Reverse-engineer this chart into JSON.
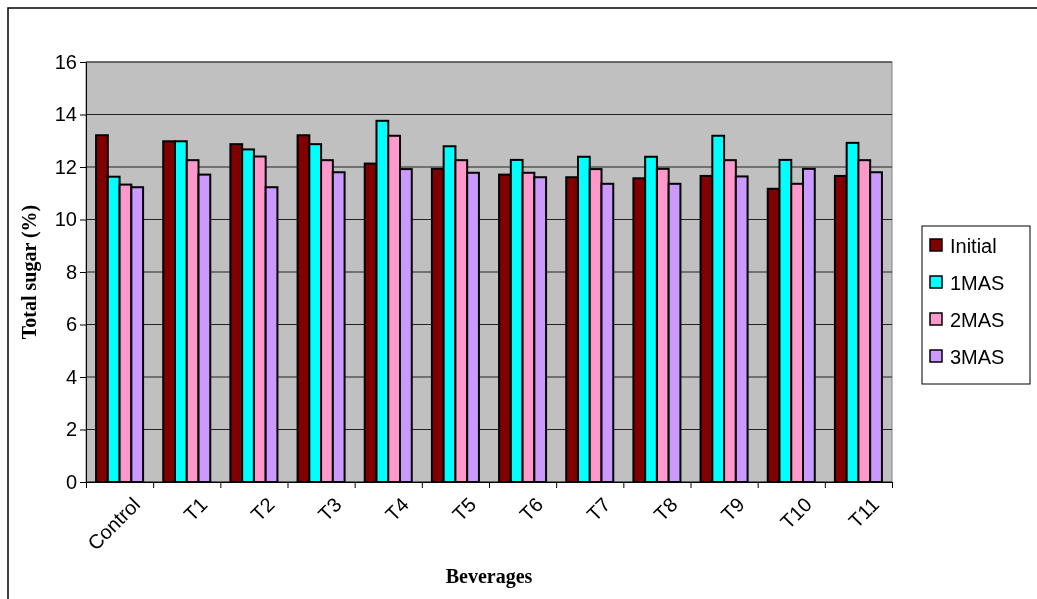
{
  "chart_data": {
    "type": "bar",
    "xlabel": "Beverages",
    "ylabel": "Total sugar (%)",
    "categories": [
      "Control",
      "T1",
      "T2",
      "T3",
      "T4",
      "T5",
      "T6",
      "T7",
      "T8",
      "T9",
      "T10",
      "T11"
    ],
    "series": [
      {
        "name": "Initial",
        "color": "#800000",
        "values": [
          13.21,
          12.98,
          12.87,
          13.21,
          12.13,
          11.93,
          11.71,
          11.61,
          11.57,
          11.66,
          11.17,
          11.66
        ]
      },
      {
        "name": "1MAS",
        "color": "#00ffff",
        "values": [
          11.63,
          12.98,
          12.67,
          12.87,
          13.76,
          12.79,
          12.27,
          12.39,
          12.39,
          13.19,
          12.27,
          12.92
        ]
      },
      {
        "name": "2MAS",
        "color": "#ff99cc",
        "values": [
          11.33,
          12.26,
          12.4,
          12.26,
          13.19,
          12.26,
          11.78,
          11.92,
          11.93,
          12.26,
          11.36,
          12.26
        ]
      },
      {
        "name": "3MAS",
        "color": "#cc99ff",
        "values": [
          11.23,
          11.71,
          11.23,
          11.8,
          11.92,
          11.78,
          11.61,
          11.36,
          11.36,
          11.64,
          11.93,
          11.8
        ]
      }
    ],
    "ylim": [
      0,
      16
    ],
    "yticks": [
      0,
      2,
      4,
      6,
      8,
      10,
      12,
      14,
      16
    ],
    "grid": "y",
    "legend": "right"
  }
}
